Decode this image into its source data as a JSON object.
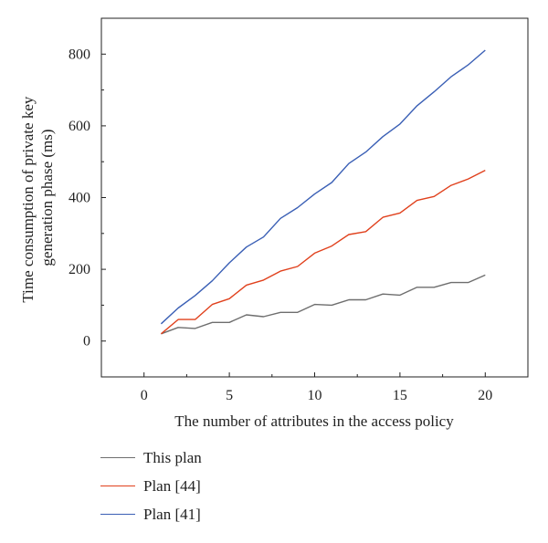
{
  "chart_data": {
    "type": "line",
    "xlabel": "The number of attributes in the access policy",
    "ylabel_lines": [
      "Time consumption of private key",
      "generation phase (ms)"
    ],
    "xlim": [
      -2.5,
      22.5
    ],
    "ylim": [
      -100,
      900
    ],
    "xticks": [
      0,
      5,
      10,
      15,
      20
    ],
    "yticks": [
      0,
      200,
      400,
      600,
      800
    ],
    "grid": false,
    "legend_position": "below",
    "series": [
      {
        "name": "This plan",
        "color": "#6e6e6e",
        "x": [
          1,
          2,
          3,
          4,
          5,
          6,
          7,
          8,
          9,
          10,
          11,
          12,
          13,
          14,
          15,
          16,
          17,
          18,
          19,
          20
        ],
        "y": [
          20,
          38,
          35,
          52,
          52,
          73,
          68,
          80,
          80,
          102,
          100,
          115,
          115,
          131,
          128,
          150,
          150,
          163,
          163,
          184
        ]
      },
      {
        "name": "Plan [44]",
        "color": "#e0401c",
        "x": [
          1,
          2,
          3,
          4,
          5,
          6,
          7,
          8,
          9,
          10,
          11,
          12,
          13,
          14,
          15,
          16,
          17,
          18,
          19,
          20
        ],
        "y": [
          20,
          60,
          60,
          102,
          118,
          156,
          170,
          195,
          208,
          245,
          265,
          297,
          305,
          345,
          357,
          392,
          403,
          434,
          452,
          476
        ]
      },
      {
        "name": "Plan [41]",
        "color": "#3a5fb5",
        "x": [
          1,
          2,
          3,
          4,
          5,
          6,
          7,
          8,
          9,
          10,
          11,
          12,
          13,
          14,
          15,
          16,
          17,
          18,
          19,
          20
        ],
        "y": [
          48,
          92,
          127,
          168,
          218,
          262,
          290,
          342,
          372,
          410,
          442,
          495,
          527,
          570,
          605,
          656,
          695,
          737,
          770,
          811
        ]
      }
    ]
  }
}
